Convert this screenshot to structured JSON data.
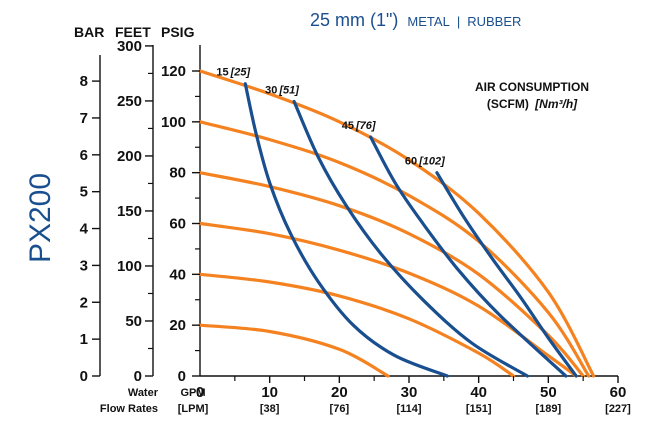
{
  "chart_data": {
    "type": "line",
    "model": "PX200",
    "title": {
      "size": "25 mm (1\")",
      "material_a": "METAL",
      "separator": "|",
      "material_b": "RUBBER"
    },
    "pressure_axes": {
      "bar": {
        "label": "BAR",
        "ticks": [
          0,
          1,
          2,
          3,
          4,
          5,
          6,
          7,
          8
        ]
      },
      "feet": {
        "label": "FEET",
        "ticks": [
          0,
          50,
          100,
          150,
          200,
          250,
          300
        ]
      },
      "psig": {
        "label": "PSIG",
        "ticks": [
          0,
          20,
          40,
          60,
          80,
          100,
          120
        ]
      }
    },
    "x_axis": {
      "label_gpm": "GPM",
      "label_lpm": "[LPM]",
      "row_label_1": "Water",
      "row_label_2": "Flow Rates",
      "ticks": [
        {
          "gpm": 10,
          "lpm": "[38]"
        },
        {
          "gpm": 20,
          "lpm": "[76]"
        },
        {
          "gpm": 30,
          "lpm": "[114]"
        },
        {
          "gpm": 40,
          "lpm": "[151]"
        },
        {
          "gpm": 50,
          "lpm": "[189]"
        },
        {
          "gpm": 60,
          "lpm": "[227]"
        }
      ],
      "range": [
        0,
        60
      ]
    },
    "y_range_psig": [
      0,
      120
    ],
    "legend_title": {
      "line1": "AIR CONSUMPTION",
      "line2_a": "(SCFM)",
      "line2_b": "[Nm³/h]"
    },
    "series": [
      {
        "group": "inlet_air_pressure",
        "color": "#f58220",
        "x": [
          0,
          10,
          20,
          30,
          40,
          50,
          56.5
        ],
        "y": [
          120,
          111,
          100,
          85,
          64,
          33,
          0
        ]
      },
      {
        "group": "inlet_air_pressure",
        "color": "#f58220",
        "x": [
          0,
          10,
          20,
          30,
          40,
          50,
          55.8
        ],
        "y": [
          100,
          93,
          84,
          71,
          53,
          25,
          0
        ]
      },
      {
        "group": "inlet_air_pressure",
        "color": "#f58220",
        "x": [
          0,
          10,
          20,
          30,
          40,
          50,
          55
        ],
        "y": [
          80,
          74.5,
          67,
          56,
          40,
          16,
          0
        ]
      },
      {
        "group": "inlet_air_pressure",
        "color": "#f58220",
        "x": [
          0,
          10,
          20,
          30,
          40,
          50,
          54
        ],
        "y": [
          60,
          56,
          49.5,
          40.5,
          27.5,
          8,
          0
        ]
      },
      {
        "group": "inlet_air_pressure",
        "color": "#f58220",
        "x": [
          0,
          10,
          20,
          30,
          40,
          45
        ],
        "y": [
          40,
          37,
          31.5,
          22.5,
          9,
          0
        ]
      },
      {
        "group": "inlet_air_pressure",
        "color": "#f58220",
        "x": [
          0,
          10,
          20,
          27
        ],
        "y": [
          20,
          17.5,
          10.5,
          0
        ]
      },
      {
        "group": "air_consumption",
        "scfm": "15",
        "nm3h": "[25]",
        "color": "#1a4f8f",
        "x": [
          6.5,
          8,
          10,
          13,
          17,
          22,
          28,
          35.5
        ],
        "y": [
          115,
          96,
          76,
          56,
          37,
          20,
          8,
          0
        ]
      },
      {
        "group": "air_consumption",
        "scfm": "30",
        "nm3h": "[51]",
        "color": "#1a4f8f",
        "x": [
          13.5,
          17,
          21,
          26,
          32,
          39,
          47
        ],
        "y": [
          108,
          86,
          67,
          48,
          30,
          13,
          0
        ]
      },
      {
        "group": "air_consumption",
        "scfm": "45",
        "nm3h": "[76]",
        "color": "#1a4f8f",
        "x": [
          24.5,
          28,
          32,
          37,
          43,
          52.5
        ],
        "y": [
          94,
          76,
          60,
          42,
          24,
          0
        ]
      },
      {
        "group": "air_consumption",
        "scfm": "60",
        "nm3h": "[102]",
        "color": "#1a4f8f",
        "x": [
          34,
          38,
          42,
          46,
          50,
          54
        ],
        "y": [
          80,
          62,
          46,
          31,
          15,
          0
        ]
      }
    ]
  }
}
